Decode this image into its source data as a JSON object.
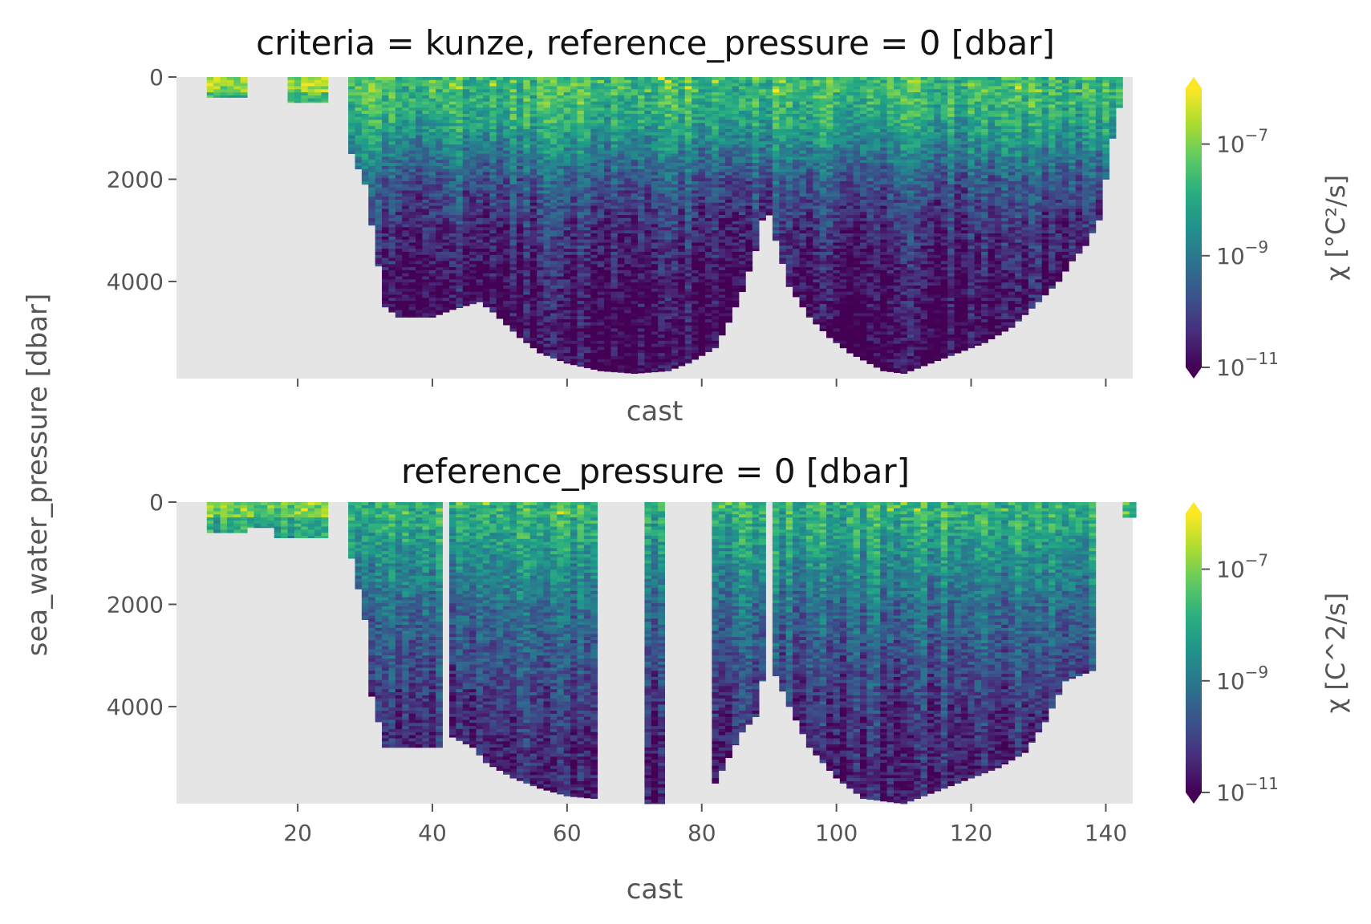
{
  "chart_data": [
    {
      "type": "heatmap",
      "title": "criteria = kunze, reference_pressure = 0 [dbar]",
      "xlabel": "cast",
      "ylabel": "sea_water_pressure [dbar]",
      "x_ticks": [
        20,
        40,
        60,
        80,
        100,
        120,
        140
      ],
      "x_tick_labels_visible": false,
      "y_ticks": [
        "0",
        "2000",
        "4000"
      ],
      "xlim": [
        2,
        144
      ],
      "ylim": [
        5900,
        0
      ],
      "colorbar": {
        "label": "χ [°C²/s]",
        "scale": "log",
        "range": [
          1e-11,
          1e-06
        ],
        "ticks": [
          "10",
          "10",
          "10"
        ],
        "tick_exponents": [
          "−7",
          "−9",
          "−11"
        ],
        "extend": "both",
        "colormap": "viridis"
      },
      "background": "#e5e5e5",
      "seafloor_depth": [
        [
          27,
          0
        ],
        [
          28,
          1500
        ],
        [
          30,
          2100
        ],
        [
          31,
          2900
        ],
        [
          33,
          4500
        ],
        [
          35,
          4700
        ],
        [
          40,
          4700
        ],
        [
          43,
          4550
        ],
        [
          47,
          4400
        ],
        [
          49,
          4600
        ],
        [
          53,
          5100
        ],
        [
          56,
          5400
        ],
        [
          60,
          5600
        ],
        [
          65,
          5750
        ],
        [
          70,
          5800
        ],
        [
          75,
          5750
        ],
        [
          78,
          5600
        ],
        [
          82,
          5300
        ],
        [
          84,
          4800
        ],
        [
          86,
          4200
        ],
        [
          88,
          3400
        ],
        [
          89,
          2800
        ],
        [
          90,
          2700
        ],
        [
          91,
          3200
        ],
        [
          93,
          4100
        ],
        [
          96,
          4700
        ],
        [
          99,
          5100
        ],
        [
          102,
          5400
        ],
        [
          107,
          5750
        ],
        [
          110,
          5800
        ],
        [
          114,
          5600
        ],
        [
          118,
          5400
        ],
        [
          122,
          5200
        ],
        [
          126,
          4900
        ],
        [
          130,
          4400
        ],
        [
          133,
          4000
        ],
        [
          135,
          3600
        ],
        [
          137,
          3300
        ],
        [
          139,
          2800
        ],
        [
          141,
          1200
        ],
        [
          143,
          0
        ]
      ],
      "shallow_casts": [
        [
          7,
          12,
          400
        ],
        [
          19,
          24,
          500
        ]
      ],
      "log10_chi_profile": [
        [
          0,
          -7.6
        ],
        [
          500,
          -7.7
        ],
        [
          1000,
          -8.2
        ],
        [
          1500,
          -8.9
        ],
        [
          2000,
          -9.6
        ],
        [
          3000,
          -10.3
        ],
        [
          4000,
          -10.7
        ],
        [
          5000,
          -10.9
        ],
        [
          5900,
          -11.0
        ]
      ]
    },
    {
      "type": "heatmap",
      "title": "reference_pressure = 0 [dbar]",
      "xlabel": "cast",
      "ylabel": "sea_water_pressure [dbar]",
      "x_ticks": [
        "20",
        "40",
        "60",
        "80",
        "100",
        "120",
        "140"
      ],
      "y_ticks": [
        "0",
        "2000",
        "4000"
      ],
      "xlim": [
        2,
        144
      ],
      "ylim": [
        5900,
        0
      ],
      "colorbar": {
        "label": "χ [C^2/s]",
        "scale": "log",
        "range": [
          1e-11,
          1e-06
        ],
        "ticks": [
          "10",
          "10",
          "10"
        ],
        "tick_exponents": [
          "−7",
          "−9",
          "−11"
        ],
        "extend": "both",
        "colormap": "viridis"
      },
      "background": "#e5e5e5",
      "seafloor_depth": [
        [
          27,
          0
        ],
        [
          28,
          1100
        ],
        [
          30,
          2300
        ],
        [
          31,
          3800
        ],
        [
          33,
          4800
        ],
        [
          40,
          4800
        ],
        [
          41,
          4800
        ],
        [
          43,
          4600
        ],
        [
          46,
          4800
        ],
        [
          48,
          5100
        ],
        [
          52,
          5400
        ],
        [
          56,
          5600
        ],
        [
          60,
          5750
        ],
        [
          64,
          5800
        ],
        [
          72,
          5900
        ],
        [
          74,
          5900
        ],
        [
          82,
          5500
        ],
        [
          84,
          5000
        ],
        [
          86,
          4500
        ],
        [
          88,
          4200
        ],
        [
          89,
          3500
        ],
        [
          91,
          3400
        ],
        [
          93,
          4000
        ],
        [
          96,
          4800
        ],
        [
          100,
          5400
        ],
        [
          104,
          5800
        ],
        [
          110,
          5900
        ],
        [
          114,
          5700
        ],
        [
          118,
          5500
        ],
        [
          124,
          5200
        ],
        [
          128,
          4900
        ],
        [
          131,
          4300
        ],
        [
          134,
          3500
        ],
        [
          136,
          3400
        ],
        [
          138,
          3300
        ],
        [
          139,
          0
        ]
      ],
      "missing_cast_ranges": [
        [
          65,
          71
        ],
        [
          75,
          81
        ],
        [
          90,
          90
        ]
      ],
      "gap_columns": [
        [
          42,
          42
        ]
      ],
      "shallow_casts": [
        [
          7,
          12,
          600
        ],
        [
          13,
          16,
          500
        ],
        [
          17,
          24,
          700
        ],
        [
          143,
          144,
          300
        ]
      ],
      "log10_chi_profile": [
        [
          0,
          -7.8
        ],
        [
          500,
          -8.0
        ],
        [
          1000,
          -8.4
        ],
        [
          2000,
          -9.2
        ],
        [
          3000,
          -9.7
        ],
        [
          4000,
          -10.2
        ],
        [
          5000,
          -10.5
        ],
        [
          5900,
          -10.6
        ]
      ]
    }
  ]
}
